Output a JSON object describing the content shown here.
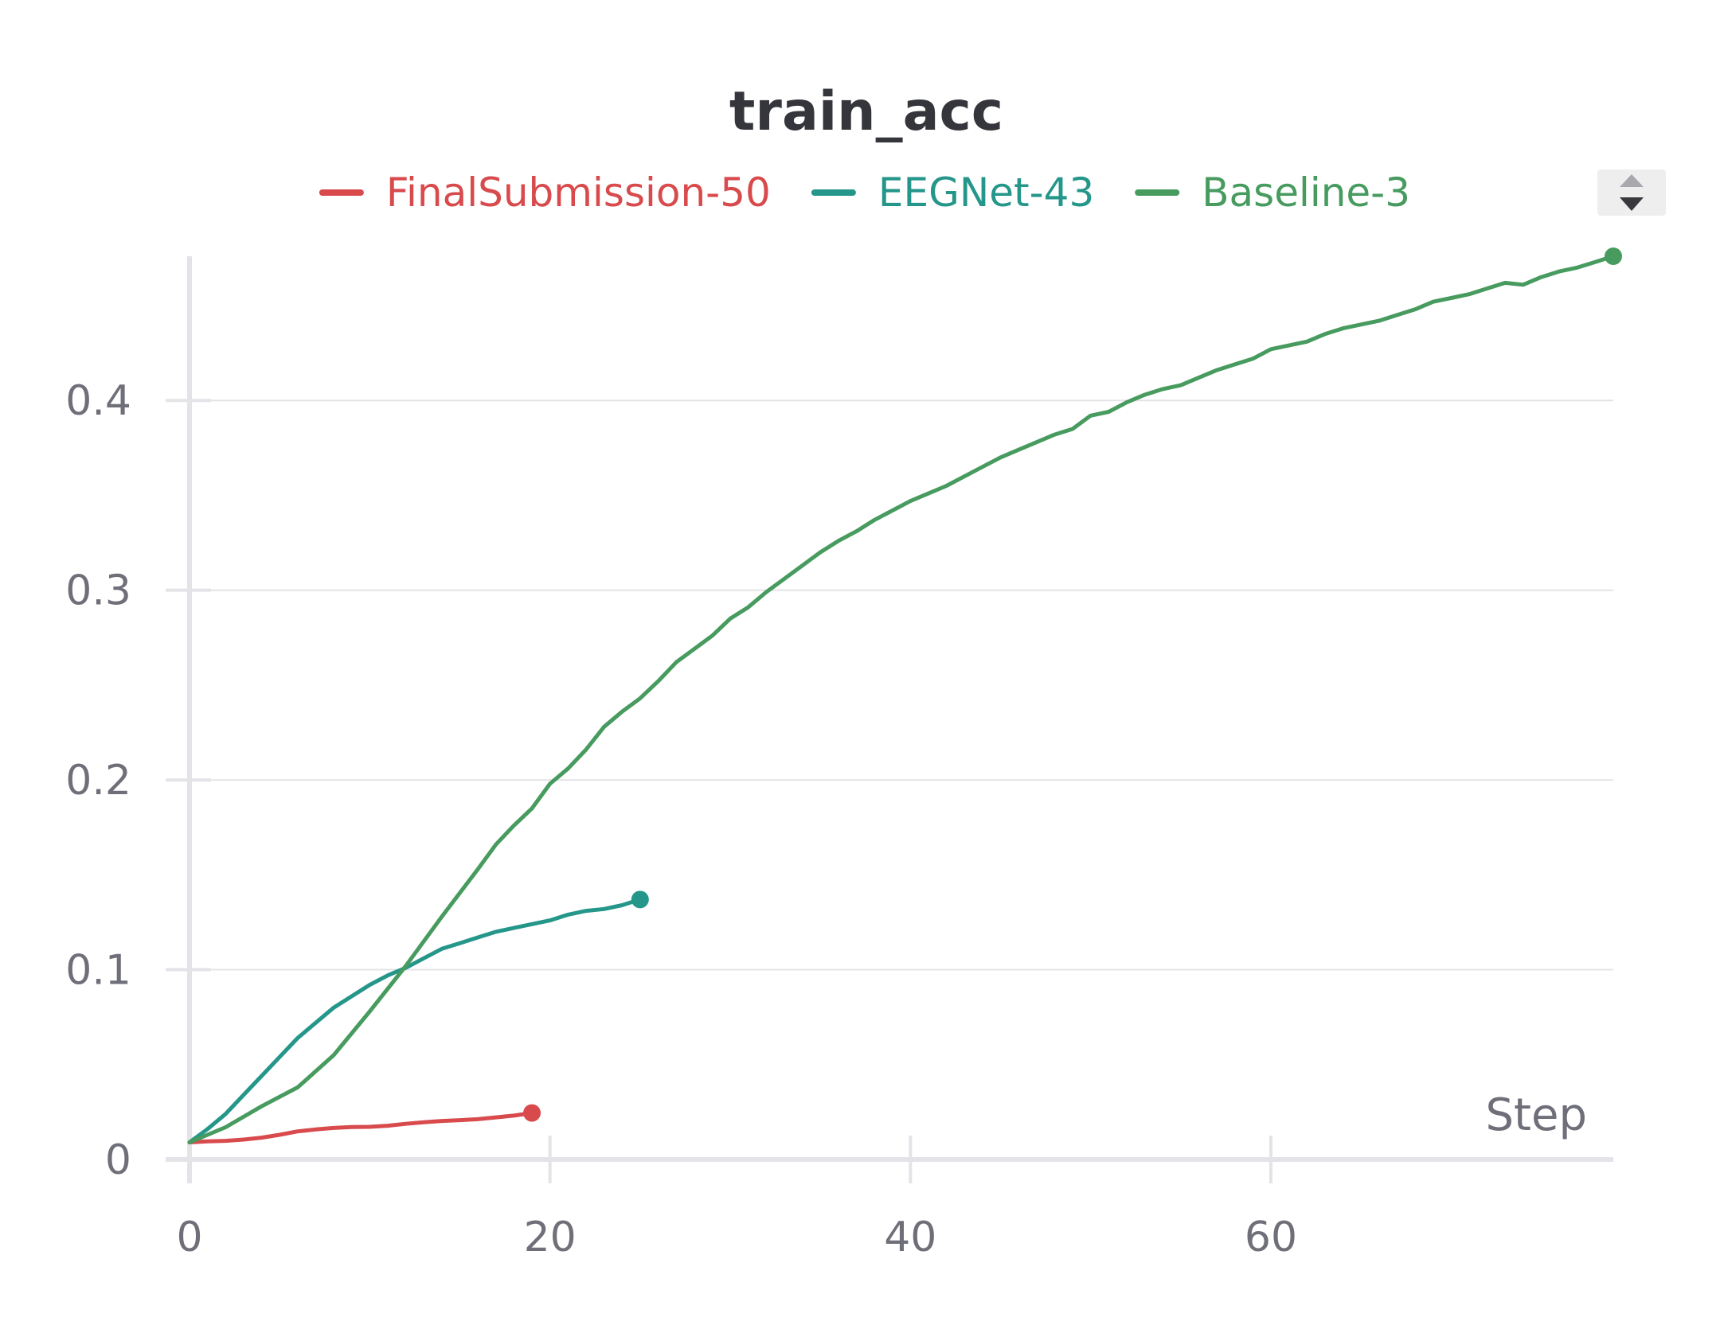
{
  "chart_data": {
    "type": "line",
    "title": "train_acc",
    "xlabel": "Step",
    "ylabel": "",
    "xlim": [
      0,
      79
    ],
    "ylim": [
      0,
      0.476
    ],
    "x_ticks": [
      0,
      20,
      40,
      60
    ],
    "x_tick_labels": [
      "0",
      "20",
      "40",
      "60"
    ],
    "y_ticks": [
      0,
      0.1,
      0.2,
      0.3,
      0.4
    ],
    "y_tick_labels": [
      "0",
      "0.1",
      "0.2",
      "0.3",
      "0.4"
    ],
    "grid": true,
    "legend_position": "top",
    "series": [
      {
        "name": "FinalSubmission-50",
        "color": "#d84a4c",
        "x": [
          0,
          1,
          2,
          3,
          4,
          5,
          6,
          7,
          8,
          9,
          10,
          11,
          12,
          13,
          14,
          15,
          16,
          17,
          18,
          19
        ],
        "y": [
          0.009,
          0.0095,
          0.0098,
          0.0105,
          0.0115,
          0.013,
          0.0148,
          0.0158,
          0.0166,
          0.0171,
          0.0172,
          0.0178,
          0.0188,
          0.0196,
          0.0203,
          0.0207,
          0.0212,
          0.0222,
          0.0231,
          0.0245
        ]
      },
      {
        "name": "EEGNet-43",
        "color": "#24968a",
        "x": [
          0,
          1,
          2,
          3,
          4,
          5,
          6,
          7,
          8,
          9,
          10,
          11,
          12,
          13,
          14,
          15,
          16,
          17,
          18,
          19,
          20,
          21,
          22,
          23,
          24,
          25
        ],
        "y": [
          0.009,
          0.016,
          0.024,
          0.034,
          0.044,
          0.054,
          0.064,
          0.072,
          0.08,
          0.086,
          0.092,
          0.097,
          0.101,
          0.106,
          0.111,
          0.114,
          0.117,
          0.12,
          0.122,
          0.124,
          0.126,
          0.129,
          0.131,
          0.132,
          0.134,
          0.137
        ]
      },
      {
        "name": "Baseline-3",
        "color": "#479b5f",
        "x": [
          0,
          2,
          4,
          6,
          8,
          10,
          12,
          14,
          16,
          17,
          18,
          19,
          20,
          21,
          22,
          23,
          24,
          25,
          26,
          27,
          28,
          29,
          30,
          31,
          32,
          33,
          34,
          35,
          36,
          37,
          38,
          39,
          40,
          41,
          42,
          43,
          44,
          45,
          46,
          47,
          48,
          49,
          50,
          51,
          52,
          53,
          54,
          55,
          56,
          57,
          58,
          59,
          60,
          61,
          62,
          63,
          64,
          65,
          66,
          67,
          68,
          69,
          70,
          71,
          72,
          73,
          74,
          75,
          76,
          77,
          78,
          79
        ],
        "y": [
          0.009,
          0.017,
          0.028,
          0.038,
          0.055,
          0.078,
          0.102,
          0.128,
          0.153,
          0.166,
          0.176,
          0.185,
          0.198,
          0.206,
          0.216,
          0.228,
          0.236,
          0.243,
          0.252,
          0.262,
          0.269,
          0.276,
          0.285,
          0.291,
          0.299,
          0.306,
          0.313,
          0.32,
          0.326,
          0.331,
          0.337,
          0.342,
          0.347,
          0.351,
          0.355,
          0.36,
          0.365,
          0.37,
          0.374,
          0.378,
          0.382,
          0.385,
          0.392,
          0.394,
          0.399,
          0.403,
          0.406,
          0.408,
          0.412,
          0.416,
          0.419,
          0.422,
          0.427,
          0.429,
          0.431,
          0.435,
          0.438,
          0.44,
          0.442,
          0.445,
          0.448,
          0.452,
          0.454,
          0.456,
          0.459,
          0.462,
          0.461,
          0.465,
          0.468,
          0.47,
          0.473,
          0.476
        ]
      }
    ]
  },
  "controls": {
    "legend_scroll_icon": "up-down-arrows-icon"
  }
}
